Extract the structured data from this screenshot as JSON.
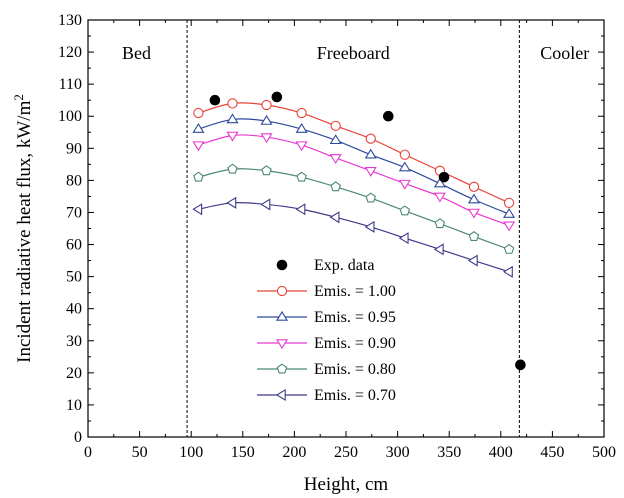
{
  "chart_data": {
    "type": "line",
    "xlabel": "Height, cm",
    "ylabel": "Incident radiative heat flux, kW/m",
    "ylabel_sup": "2",
    "xlim": [
      0,
      500
    ],
    "ylim": [
      0,
      130
    ],
    "x_ticks": [
      0,
      50,
      100,
      150,
      200,
      250,
      300,
      350,
      400,
      450,
      500
    ],
    "y_ticks": [
      0,
      10,
      20,
      30,
      40,
      50,
      60,
      70,
      80,
      90,
      100,
      110,
      120,
      130
    ],
    "grid": false,
    "legend_position": "bottom-center",
    "regions": [
      {
        "label": "Bed",
        "x_label": 47
      },
      {
        "label": "Freeboard",
        "x_label": 257
      },
      {
        "label": "Cooler",
        "x_label": 462
      }
    ],
    "region_boundaries": [
      96,
      418
    ],
    "experimental": {
      "name": "Exp. data",
      "marker": "filled-circle",
      "color": "#000000",
      "x": [
        123,
        183,
        291,
        345,
        419
      ],
      "y": [
        105,
        106,
        100,
        81,
        22.5
      ]
    },
    "series": [
      {
        "name": "Emis. = 1.00",
        "marker": "circle",
        "color": "#e8443a",
        "x": [
          107,
          140,
          173,
          207,
          240,
          274,
          307,
          341,
          374,
          408
        ],
        "y": [
          101,
          104,
          103.5,
          101,
          97,
          93,
          88,
          83,
          78,
          73
        ]
      },
      {
        "name": "Emis. = 0.95",
        "marker": "triangle-up",
        "color": "#2c4a9c",
        "x": [
          107,
          140,
          173,
          207,
          240,
          274,
          307,
          341,
          374,
          408
        ],
        "y": [
          96,
          99,
          98.5,
          96,
          92.5,
          88,
          84,
          79,
          74,
          69.5
        ]
      },
      {
        "name": "Emis. = 0.90",
        "marker": "triangle-down",
        "color": "#e83ad0",
        "x": [
          107,
          140,
          173,
          207,
          240,
          274,
          307,
          341,
          374,
          408
        ],
        "y": [
          91,
          94,
          93.5,
          91,
          87,
          83,
          79,
          75,
          70,
          66
        ]
      },
      {
        "name": "Emis. = 0.80",
        "marker": "pentagon",
        "color": "#4a8a6e",
        "x": [
          107,
          140,
          173,
          207,
          240,
          274,
          307,
          341,
          374,
          408
        ],
        "y": [
          81,
          83.5,
          83,
          81,
          78,
          74.5,
          70.5,
          66.5,
          62.5,
          58.5
        ]
      },
      {
        "name": "Emis. = 0.70",
        "marker": "triangle-left",
        "color": "#3f3a8a",
        "x": [
          107,
          140,
          173,
          207,
          240,
          274,
          307,
          341,
          374,
          408
        ],
        "y": [
          71,
          73,
          72.5,
          71,
          68.5,
          65.5,
          62,
          58.5,
          55,
          51.5
        ]
      }
    ]
  }
}
